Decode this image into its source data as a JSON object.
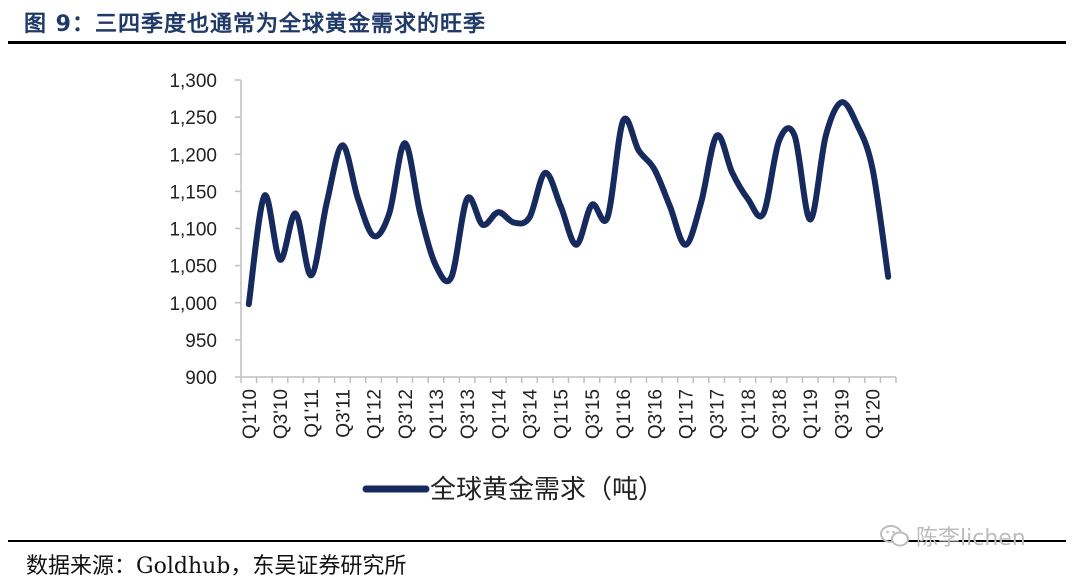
{
  "figure": {
    "title": "图 9：三四季度也通常为全球黄金需求的旺季",
    "source": "数据来源：Goldhub，东吴证券研究所",
    "watermark": "陈李lichen"
  },
  "chart_data": {
    "type": "line",
    "title": "",
    "xlabel": "",
    "ylabel": "",
    "ylim": [
      900,
      1300
    ],
    "yticks": [
      "900",
      "950",
      "1,000",
      "1,050",
      "1,100",
      "1,150",
      "1,200",
      "1,250",
      "1,300"
    ],
    "ytick_values": [
      900,
      950,
      1000,
      1050,
      1100,
      1150,
      1200,
      1250,
      1300
    ],
    "x_tick_labels": [
      "Q1'10",
      "Q3'10",
      "Q1'11",
      "Q3'11",
      "Q1'12",
      "Q3'12",
      "Q1'13",
      "Q3'13",
      "Q1'14",
      "Q3'14",
      "Q1'15",
      "Q3'15",
      "Q1'16",
      "Q3'16",
      "Q1'17",
      "Q3'17",
      "Q1'18",
      "Q3'18",
      "Q1'19",
      "Q3'19",
      "Q1'20"
    ],
    "categories": [
      "Q1'10",
      "Q2'10",
      "Q3'10",
      "Q4'10",
      "Q1'11",
      "Q2'11",
      "Q3'11",
      "Q4'11",
      "Q1'12",
      "Q2'12",
      "Q3'12",
      "Q4'12",
      "Q1'13",
      "Q2'13",
      "Q3'13",
      "Q4'13",
      "Q1'14",
      "Q2'14",
      "Q3'14",
      "Q4'14",
      "Q1'15",
      "Q2'15",
      "Q3'15",
      "Q4'15",
      "Q1'16",
      "Q2'16",
      "Q3'16",
      "Q4'16",
      "Q1'17",
      "Q2'17",
      "Q3'17",
      "Q4'17",
      "Q1'18",
      "Q2'18",
      "Q3'18",
      "Q4'18",
      "Q1'19",
      "Q2'19",
      "Q3'19",
      "Q4'19",
      "Q1'20",
      "Q2'20"
    ],
    "series": [
      {
        "name": "全球黄金需求（吨）",
        "color": "#172a5e",
        "values": [
          998,
          1144,
          1058,
          1120,
          1037,
          1135,
          1212,
          1140,
          1090,
          1120,
          1215,
          1120,
          1050,
          1035,
          1140,
          1105,
          1122,
          1108,
          1115,
          1175,
          1130,
          1078,
          1132,
          1115,
          1245,
          1205,
          1180,
          1130,
          1078,
          1135,
          1225,
          1175,
          1140,
          1120,
          1218,
          1225,
          1112,
          1225,
          1270,
          1240,
          1180,
          1035
        ]
      }
    ],
    "legend": {
      "position": "bottom",
      "label": "全球黄金需求（吨）"
    },
    "grid": false
  }
}
